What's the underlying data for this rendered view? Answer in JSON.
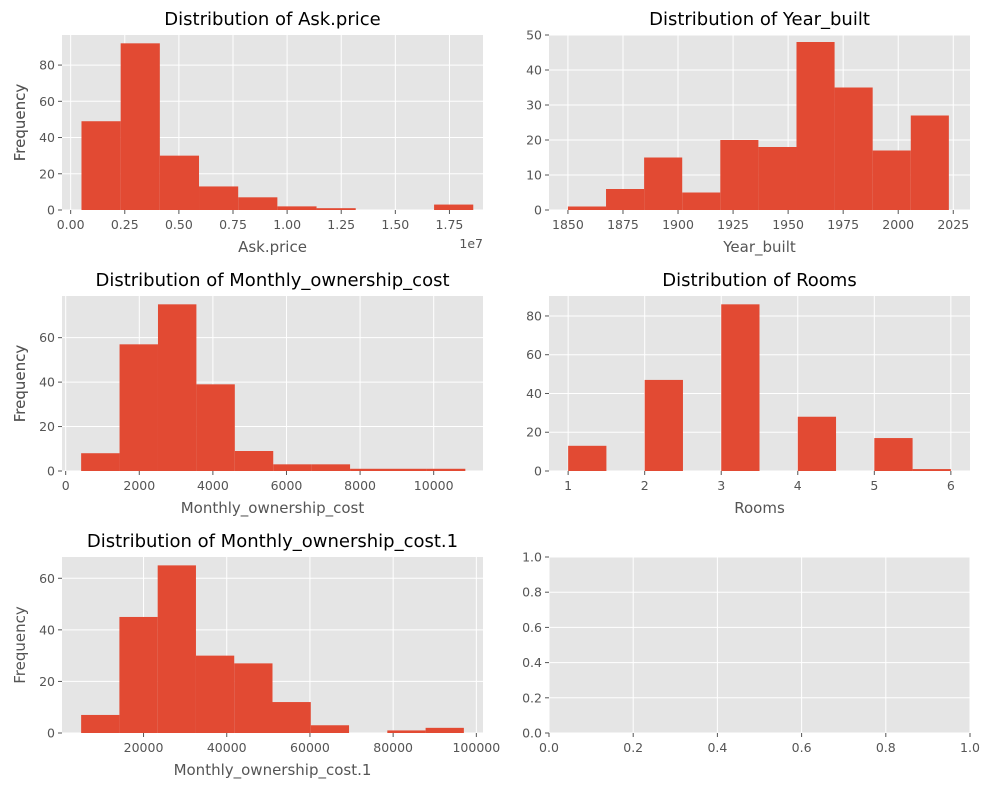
{
  "style": {
    "axes_bg": "#e5e5e5",
    "grid": "#ffffff",
    "bar": "#e24a33",
    "text": "#555555",
    "title": "#000000"
  },
  "chart_data": [
    {
      "type": "bar",
      "title": "Distribution of Ask.price",
      "xlabel": "Ask.price",
      "ylabel": "Frequency",
      "x_offset_label": "1e7",
      "xlim": [
        -0.04,
        1.905
      ],
      "ylim": [
        0,
        96.6
      ],
      "xticks": [
        0,
        0.25,
        0.5,
        0.75,
        1.0,
        1.25,
        1.5,
        1.75
      ],
      "xtick_labels": [
        "0.00",
        "0.25",
        "0.50",
        "0.75",
        "1.00",
        "1.25",
        "1.50",
        "1.75"
      ],
      "yticks": [
        0,
        20,
        40,
        60,
        80
      ],
      "bin_edges": [
        0.05,
        0.231,
        0.412,
        0.593,
        0.774,
        0.955,
        1.136,
        1.317,
        1.498,
        1.679,
        1.86
      ],
      "values": [
        49,
        92,
        30,
        13,
        7,
        2,
        1,
        0,
        0,
        3
      ]
    },
    {
      "type": "bar",
      "title": "Distribution of Year_built",
      "xlabel": "Year_built",
      "ylabel": "Frequency",
      "xlim": [
        1841.4,
        2032.6
      ],
      "ylim": [
        0,
        50
      ],
      "xticks": [
        1850,
        1875,
        1900,
        1925,
        1950,
        1975,
        2000,
        2025
      ],
      "xtick_labels": [
        "1850",
        "1875",
        "1900",
        "1925",
        "1950",
        "1975",
        "2000",
        "2025"
      ],
      "yticks": [
        0,
        10,
        20,
        30,
        40,
        50
      ],
      "bin_edges": [
        1850,
        1867.3,
        1884.6,
        1901.9,
        1919.2,
        1936.5,
        1953.8,
        1971.1,
        1988.4,
        2005.7,
        2023
      ],
      "values": [
        1,
        6,
        15,
        5,
        20,
        18,
        48,
        35,
        17,
        27
      ]
    },
    {
      "type": "bar",
      "title": "Distribution of Monthly_ownership_cost",
      "xlabel": "Monthly_ownership_cost",
      "ylabel": "Frequency",
      "xlim": [
        -100,
        11340
      ],
      "ylim": [
        0,
        78.75
      ],
      "xticks": [
        0,
        2000,
        4000,
        6000,
        8000,
        10000
      ],
      "xtick_labels": [
        "0",
        "2000",
        "4000",
        "6000",
        "8000",
        "10000"
      ],
      "yticks": [
        0,
        20,
        40,
        60
      ],
      "bin_edges": [
        420,
        1464,
        2508,
        3552,
        4596,
        5640,
        6684,
        7728,
        8772,
        9816,
        10860
      ],
      "values": [
        8,
        57,
        75,
        39,
        9,
        3,
        3,
        1,
        1,
        1
      ]
    },
    {
      "type": "bar",
      "title": "Distribution of Rooms",
      "xlabel": "Rooms",
      "ylabel": "Frequency",
      "xlim": [
        0.75,
        6.25
      ],
      "ylim": [
        0,
        90.3
      ],
      "xticks": [
        1,
        2,
        3,
        4,
        5,
        6
      ],
      "xtick_labels": [
        "1",
        "2",
        "3",
        "4",
        "5",
        "6"
      ],
      "yticks": [
        0,
        20,
        40,
        60,
        80
      ],
      "bin_edges": [
        1,
        1.5,
        2,
        2.5,
        3,
        3.5,
        4,
        4.5,
        5,
        5.5,
        6
      ],
      "values": [
        13,
        0,
        47,
        0,
        86,
        0,
        28,
        0,
        17,
        1
      ]
    },
    {
      "type": "bar",
      "title": "Distribution of Monthly_ownership_cost.1",
      "xlabel": "Monthly_ownership_cost.1",
      "ylabel": "Frequency",
      "xlim": [
        400,
        101600
      ],
      "ylim": [
        0,
        68.25
      ],
      "xticks": [
        20000,
        40000,
        60000,
        80000,
        100000
      ],
      "xtick_labels": [
        "20000",
        "40000",
        "60000",
        "80000",
        "100000"
      ],
      "yticks": [
        0,
        20,
        40,
        60
      ],
      "bin_edges": [
        5000,
        14200,
        23400,
        32600,
        41800,
        51000,
        60200,
        69400,
        78600,
        87800,
        97000
      ],
      "values": [
        7,
        45,
        65,
        30,
        27,
        12,
        3,
        0,
        1,
        2
      ]
    },
    {
      "type": "bar",
      "title": "",
      "xlabel": "",
      "ylabel": "",
      "xlim": [
        0,
        1
      ],
      "ylim": [
        0,
        1
      ],
      "xticks": [
        0,
        0.2,
        0.4,
        0.6,
        0.8,
        1.0
      ],
      "xtick_labels": [
        "0.0",
        "0.2",
        "0.4",
        "0.6",
        "0.8",
        "1.0"
      ],
      "yticks": [
        0,
        0.2,
        0.4,
        0.6,
        0.8,
        1.0
      ],
      "ytick_labels": [
        "0.0",
        "0.2",
        "0.4",
        "0.6",
        "0.8",
        "1.0"
      ],
      "bin_edges": [],
      "values": []
    }
  ]
}
